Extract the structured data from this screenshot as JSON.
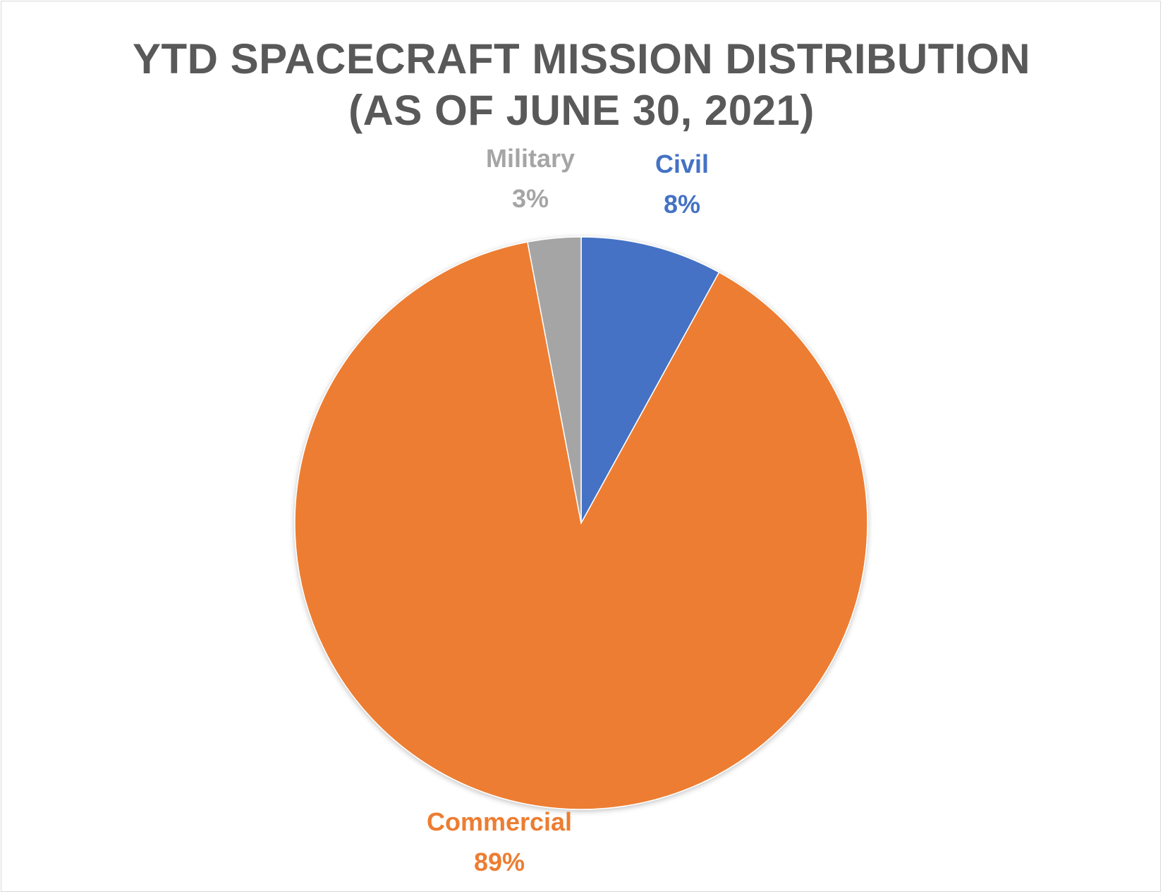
{
  "chart_data": {
    "type": "pie",
    "title": "YTD SPACECRAFT MISSION DISTRIBUTION (AS OF JUNE 30, 2021)",
    "title_lines": [
      "YTD SPACECRAFT MISSION DISTRIBUTION",
      "(AS OF JUNE 30, 2021)"
    ],
    "start_angle_deg": 0,
    "direction": "clockwise",
    "slices": [
      {
        "name": "Civil",
        "value": 8,
        "label": "8%",
        "color": "#4472C4"
      },
      {
        "name": "Commercial",
        "value": 89,
        "label": "89%",
        "color": "#ED7D31"
      },
      {
        "name": "Military",
        "value": 3,
        "label": "3%",
        "color": "#A5A5A5"
      }
    ],
    "legend": "none",
    "data_labels": "outside, category name and percent"
  }
}
